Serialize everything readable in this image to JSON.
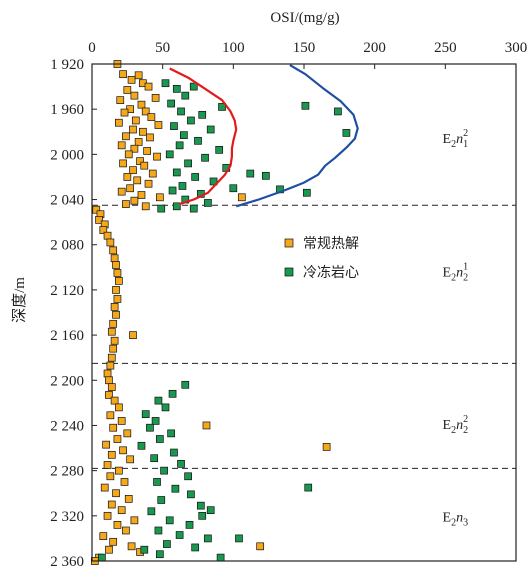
{
  "chart_data": {
    "type": "scatter",
    "xlabel": "OSI/(mg/g)",
    "ylabel": "深度/m",
    "xlim": [
      0,
      300
    ],
    "ylim": [
      1920,
      2360
    ],
    "x_ticks": [
      "0",
      "50",
      "100",
      "150",
      "200",
      "250",
      "300"
    ],
    "x_tick_values": [
      0,
      50,
      100,
      150,
      200,
      250,
      300
    ],
    "y_ticks": [
      "1 920",
      "1 960",
      "2 000",
      "2 040",
      "2 080",
      "2 120",
      "2 160",
      "2 200",
      "2 240",
      "2 280",
      "2 320",
      "2 360"
    ],
    "y_tick_values": [
      1920,
      1960,
      2000,
      2040,
      2080,
      2120,
      2160,
      2200,
      2240,
      2280,
      2320,
      2360
    ],
    "x_axis_position": "top",
    "y_axis_inverted": true,
    "grid": false,
    "legend_position": "center",
    "zone_boundaries": [
      2045,
      2185,
      2278
    ],
    "zones": [
      {
        "base": "E",
        "sub": "2",
        "mid": "n",
        "sub2": "1",
        "sup": "2",
        "depth": 1990,
        "x": 248
      },
      {
        "base": "E",
        "sub": "2",
        "mid": "n",
        "sub2": "2",
        "sup": "1",
        "depth": 2108,
        "x": 248
      },
      {
        "base": "E",
        "sub": "2",
        "mid": "n",
        "sub2": "2",
        "sup": "2",
        "depth": 2243,
        "x": 248
      },
      {
        "base": "E",
        "sub": "2",
        "mid": "n",
        "sub2": "3",
        "sup": "",
        "depth": 2325,
        "x": 248
      }
    ],
    "series": [
      {
        "name": "常规热解",
        "color": "#f5a81c",
        "marker": "square",
        "points": [
          [
            18,
            1920
          ],
          [
            22,
            1929
          ],
          [
            28,
            1934
          ],
          [
            33,
            1930
          ],
          [
            36,
            1937
          ],
          [
            25,
            1943
          ],
          [
            40,
            1940
          ],
          [
            30,
            1948
          ],
          [
            20,
            1952
          ],
          [
            45,
            1950
          ],
          [
            35,
            1956
          ],
          [
            27,
            1960
          ],
          [
            23,
            1963
          ],
          [
            38,
            1962
          ],
          [
            42,
            1967
          ],
          [
            31,
            1970
          ],
          [
            19,
            1972
          ],
          [
            47,
            1974
          ],
          [
            29,
            1978
          ],
          [
            36,
            1980
          ],
          [
            24,
            1984
          ],
          [
            41,
            1985
          ],
          [
            33,
            1989
          ],
          [
            21,
            1992
          ],
          [
            30,
            1995
          ],
          [
            39,
            1997
          ],
          [
            26,
            2000
          ],
          [
            46,
            2002
          ],
          [
            34,
            2006
          ],
          [
            22,
            2008
          ],
          [
            37,
            2010
          ],
          [
            29,
            2014
          ],
          [
            43,
            2017
          ],
          [
            25,
            2020
          ],
          [
            32,
            2023
          ],
          [
            40,
            2026
          ],
          [
            27,
            2030
          ],
          [
            21,
            2033
          ],
          [
            35,
            2036
          ],
          [
            48,
            2038
          ],
          [
            30,
            2041
          ],
          [
            24,
            2044
          ],
          [
            38,
            2046
          ],
          [
            106,
            2038
          ],
          [
            3,
            2049
          ],
          [
            6,
            2053
          ],
          [
            5,
            2058
          ],
          [
            9,
            2062
          ],
          [
            8,
            2067
          ],
          [
            11,
            2072
          ],
          [
            13,
            2078
          ],
          [
            15,
            2085
          ],
          [
            16,
            2092
          ],
          [
            17,
            2098
          ],
          [
            18,
            2105
          ],
          [
            19,
            2112
          ],
          [
            17,
            2120
          ],
          [
            18,
            2128
          ],
          [
            16,
            2135
          ],
          [
            17,
            2142
          ],
          [
            15,
            2150
          ],
          [
            14,
            2157
          ],
          [
            29,
            2160
          ],
          [
            16,
            2165
          ],
          [
            15,
            2172
          ],
          [
            14,
            2180
          ],
          [
            13,
            2187
          ],
          [
            11,
            2194
          ],
          [
            12,
            2200
          ],
          [
            14,
            2206
          ],
          [
            12,
            2213
          ],
          [
            16,
            2218
          ],
          [
            19,
            2224
          ],
          [
            13,
            2231
          ],
          [
            21,
            2236
          ],
          [
            15,
            2242
          ],
          [
            25,
            2247
          ],
          [
            18,
            2252
          ],
          [
            10,
            2257
          ],
          [
            22,
            2262
          ],
          [
            14,
            2266
          ],
          [
            27,
            2270
          ],
          [
            11,
            2275
          ],
          [
            19,
            2280
          ],
          [
            13,
            2285
          ],
          [
            23,
            2290
          ],
          [
            9,
            2295
          ],
          [
            17,
            2300
          ],
          [
            26,
            2305
          ],
          [
            14,
            2310
          ],
          [
            21,
            2315
          ],
          [
            11,
            2320
          ],
          [
            30,
            2324
          ],
          [
            18,
            2328
          ],
          [
            24,
            2333
          ],
          [
            8,
            2338
          ],
          [
            15,
            2343
          ],
          [
            28,
            2347
          ],
          [
            12,
            2350
          ],
          [
            34,
            2352
          ],
          [
            5,
            2357
          ],
          [
            2,
            2360
          ],
          [
            81,
            2240
          ],
          [
            166,
            2259
          ],
          [
            119,
            2347
          ]
        ]
      },
      {
        "name": "冷冻岩心",
        "color": "#1a9850",
        "marker": "square",
        "points": [
          [
            52,
            1937
          ],
          [
            60,
            1942
          ],
          [
            66,
            1948
          ],
          [
            72,
            1940
          ],
          [
            56,
            1955
          ],
          [
            63,
            1962
          ],
          [
            78,
            1965
          ],
          [
            92,
            1958
          ],
          [
            70,
            1970
          ],
          [
            58,
            1975
          ],
          [
            84,
            1978
          ],
          [
            65,
            1983
          ],
          [
            75,
            1988
          ],
          [
            62,
            1992
          ],
          [
            90,
            1996
          ],
          [
            55,
            2000
          ],
          [
            80,
            2003
          ],
          [
            68,
            2008
          ],
          [
            95,
            2012
          ],
          [
            60,
            2016
          ],
          [
            73,
            2020
          ],
          [
            86,
            2024
          ],
          [
            64,
            2028
          ],
          [
            57,
            2032
          ],
          [
            77,
            2035
          ],
          [
            100,
            2030
          ],
          [
            66,
            2040
          ],
          [
            82,
            2043
          ],
          [
            112,
            2017
          ],
          [
            123,
            2019
          ],
          [
            133,
            2031
          ],
          [
            60,
            2046
          ],
          [
            72,
            2048
          ],
          [
            49,
            2048
          ],
          [
            152,
            2034
          ],
          [
            174,
            1962
          ],
          [
            180,
            1981
          ],
          [
            151,
            1957
          ],
          [
            66,
            2204
          ],
          [
            57,
            2212
          ],
          [
            47,
            2218
          ],
          [
            52,
            2224
          ],
          [
            38,
            2230
          ],
          [
            45,
            2236
          ],
          [
            41,
            2242
          ],
          [
            56,
            2247
          ],
          [
            48,
            2252
          ],
          [
            35,
            2258
          ],
          [
            58,
            2264
          ],
          [
            44,
            2269
          ],
          [
            63,
            2274
          ],
          [
            51,
            2280
          ],
          [
            68,
            2285
          ],
          [
            46,
            2290
          ],
          [
            59,
            2296
          ],
          [
            70,
            2301
          ],
          [
            49,
            2306
          ],
          [
            77,
            2311
          ],
          [
            42,
            2316
          ],
          [
            84,
            2315
          ],
          [
            78,
            2320
          ],
          [
            55,
            2324
          ],
          [
            69,
            2328
          ],
          [
            47,
            2333
          ],
          [
            62,
            2337
          ],
          [
            82,
            2340
          ],
          [
            53,
            2345
          ],
          [
            73,
            2348
          ],
          [
            91,
            2357
          ],
          [
            48,
            2354
          ],
          [
            37,
            2350
          ],
          [
            153,
            2295
          ],
          [
            104,
            2340
          ],
          [
            7,
            2357
          ]
        ]
      }
    ],
    "curves": [
      {
        "color": "#e31a1c",
        "points": [
          [
            55,
            1924
          ],
          [
            68,
            1932
          ],
          [
            80,
            1942
          ],
          [
            92,
            1952
          ],
          [
            98,
            1962
          ],
          [
            101,
            1970
          ],
          [
            102,
            1978
          ],
          [
            100,
            1988
          ],
          [
            99,
            1995
          ],
          [
            99,
            2002
          ],
          [
            98,
            2010
          ],
          [
            94,
            2018
          ],
          [
            88,
            2026
          ],
          [
            82,
            2034
          ],
          [
            72,
            2040
          ],
          [
            62,
            2044
          ]
        ]
      },
      {
        "color": "#1f4fa3",
        "points": [
          [
            140,
            1921
          ],
          [
            151,
            1929
          ],
          [
            163,
            1941
          ],
          [
            176,
            1953
          ],
          [
            185,
            1965
          ],
          [
            188,
            1977
          ],
          [
            186,
            1986
          ],
          [
            180,
            1994
          ],
          [
            172,
            2003
          ],
          [
            165,
            2010
          ],
          [
            160,
            2018
          ],
          [
            150,
            2025
          ],
          [
            136,
            2032
          ],
          [
            118,
            2040
          ],
          [
            102,
            2046
          ]
        ]
      }
    ]
  }
}
